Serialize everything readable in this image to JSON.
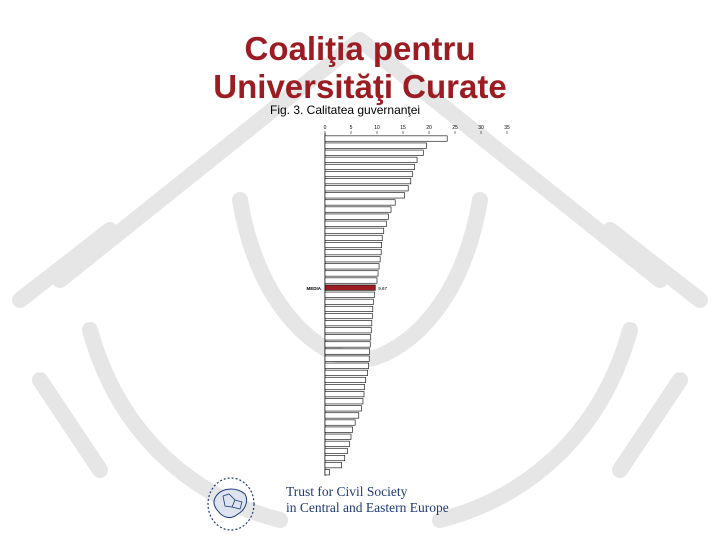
{
  "slide": {
    "title_line1": "Coaliţia pentru",
    "title_line2": "Universităţi Curate",
    "title_color": "#9b1c22"
  },
  "org": {
    "name_line1": "Trust for Civil Society",
    "name_line2": "in Central and Eastern Europe",
    "color": "#1f3a78"
  },
  "chart_data": {
    "type": "bar",
    "orientation": "horizontal",
    "title": "Fig. 3. Calitatea guvernanţei",
    "xlim": [
      0,
      35
    ],
    "xticks": [
      0,
      5,
      10,
      15,
      20,
      25,
      30,
      35
    ],
    "bar_color": "#ffffff",
    "bar_edge_color": "#000000",
    "highlight_color": "#9b1c22",
    "highlight_label": "MEDIA",
    "highlight_value_label": "9,67",
    "values": [
      23.5,
      19.5,
      18.9,
      17.7,
      17.2,
      16.8,
      16.5,
      16.0,
      15.3,
      13.5,
      12.7,
      12.2,
      11.8,
      11.3,
      11.0,
      10.9,
      10.8,
      10.6,
      10.4,
      10.2,
      10.0,
      9.67,
      9.5,
      9.3,
      9.2,
      9.1,
      9.0,
      8.9,
      8.8,
      8.7,
      8.6,
      8.5,
      8.4,
      8.2,
      7.8,
      7.6,
      7.5,
      7.3,
      7.0,
      6.5,
      5.8,
      5.3,
      5.0,
      4.7,
      4.3,
      3.8,
      3.2,
      0.9
    ],
    "highlight_index": 21
  }
}
